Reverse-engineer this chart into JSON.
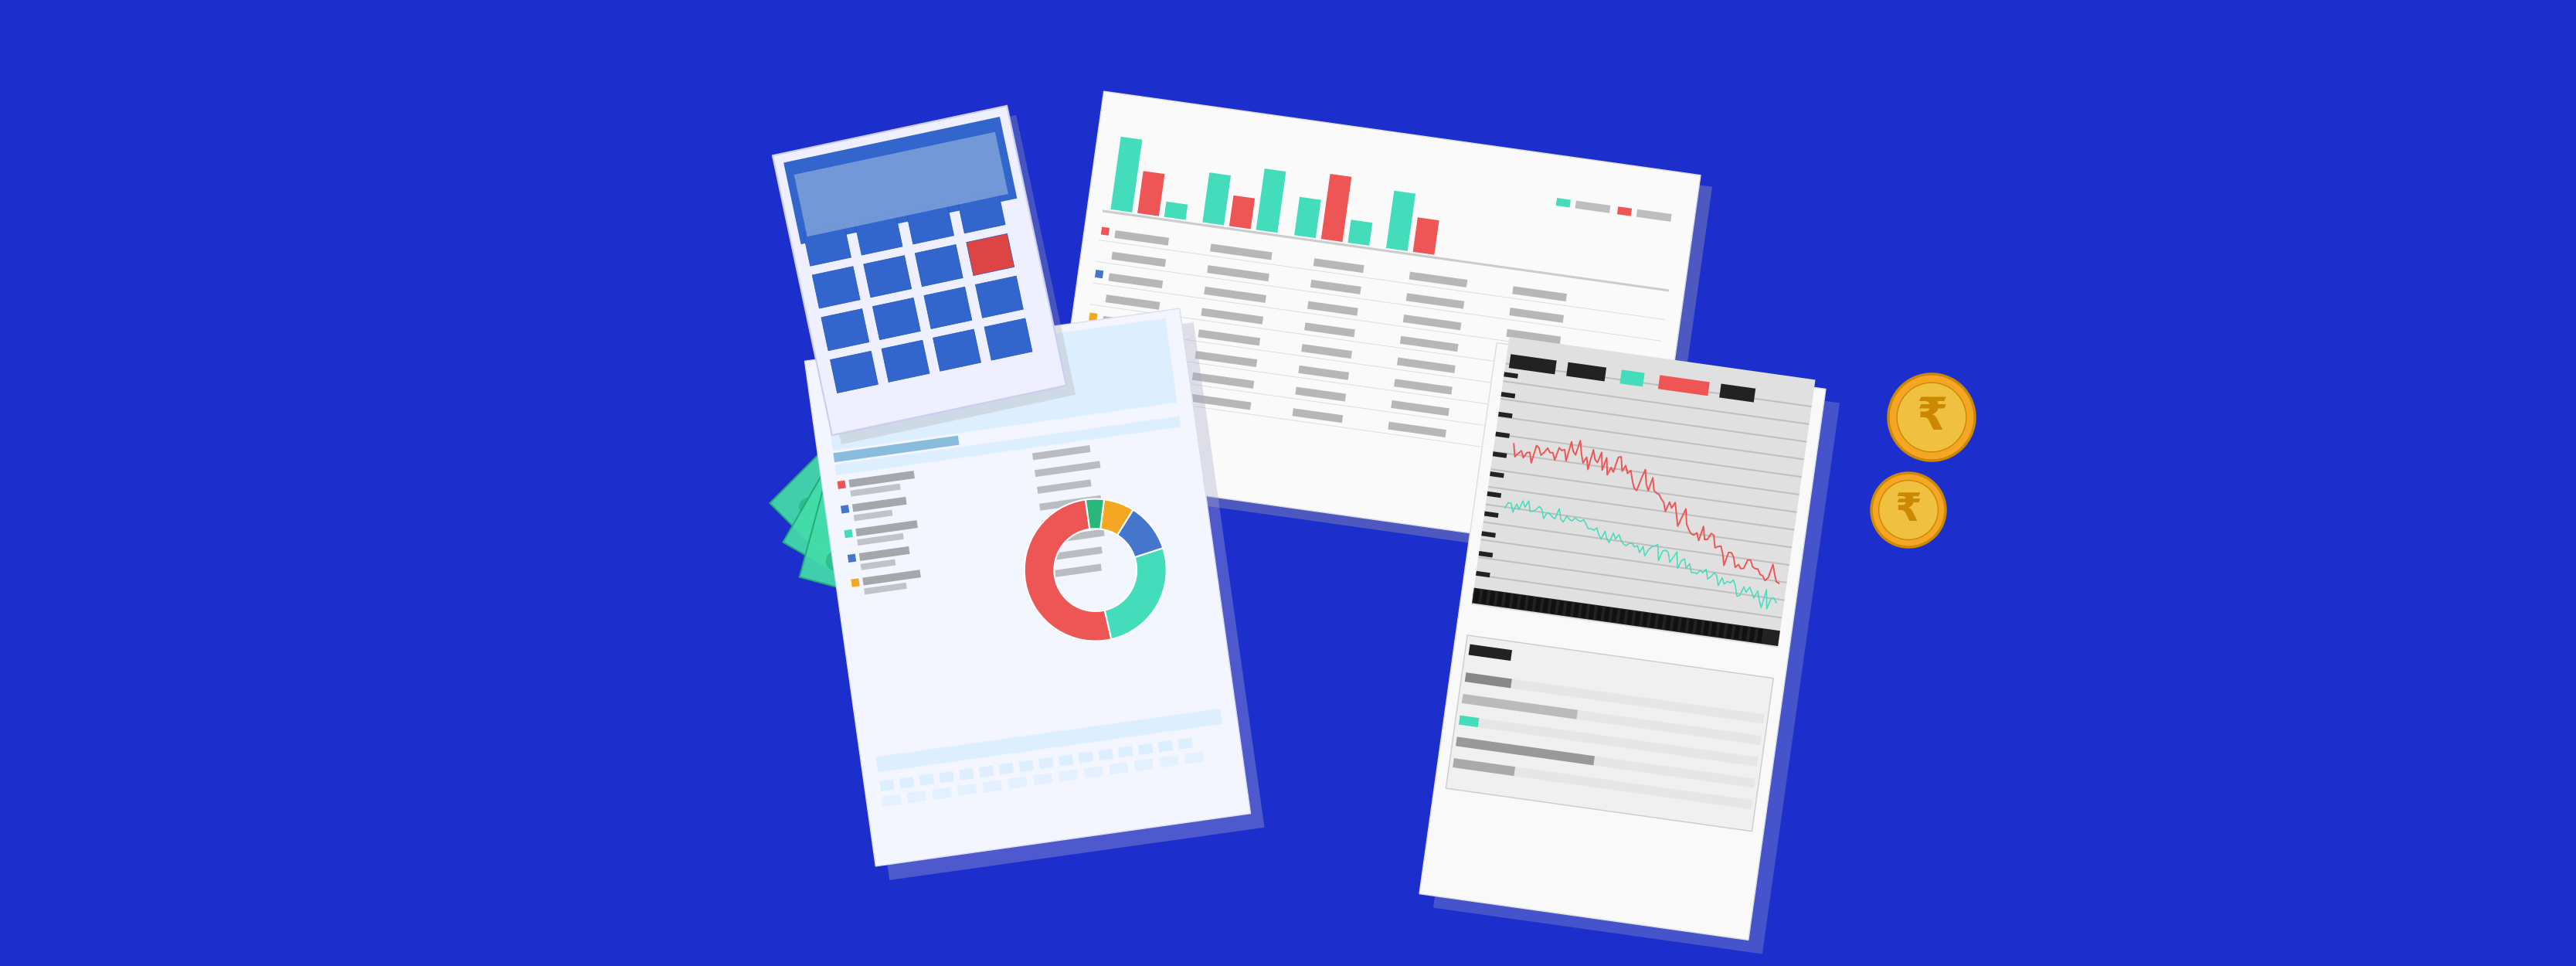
{
  "bg_color": "#1c2fcc",
  "light_blue_doc": "#ddeeff",
  "mid_blue": "#88bbdd",
  "doc_white": "#f8f9ff",
  "doc_white2": "#ffffff",
  "dark_gray": "#666666",
  "mid_gray": "#999999",
  "light_gray": "#cccccc",
  "green_money": "#44ddaa",
  "dark_green_money": "#22aa77",
  "coin_gold": "#f5a623",
  "coin_rim": "#f0c040",
  "coin_dark": "#cc8800",
  "teal_bar": "#44ddbb",
  "red_bar": "#ee5555",
  "pie_red": "#ee5555",
  "pie_teal": "#44ddbb",
  "pie_blue": "#4477cc",
  "pie_gold": "#f5a623",
  "line_red": "#ee5555",
  "line_teal": "#44ddbb",
  "calc_blue": "#3366cc",
  "calc_light": "#88aadd",
  "black_bar": "#222222",
  "chart_bg": "#e0e0e0"
}
